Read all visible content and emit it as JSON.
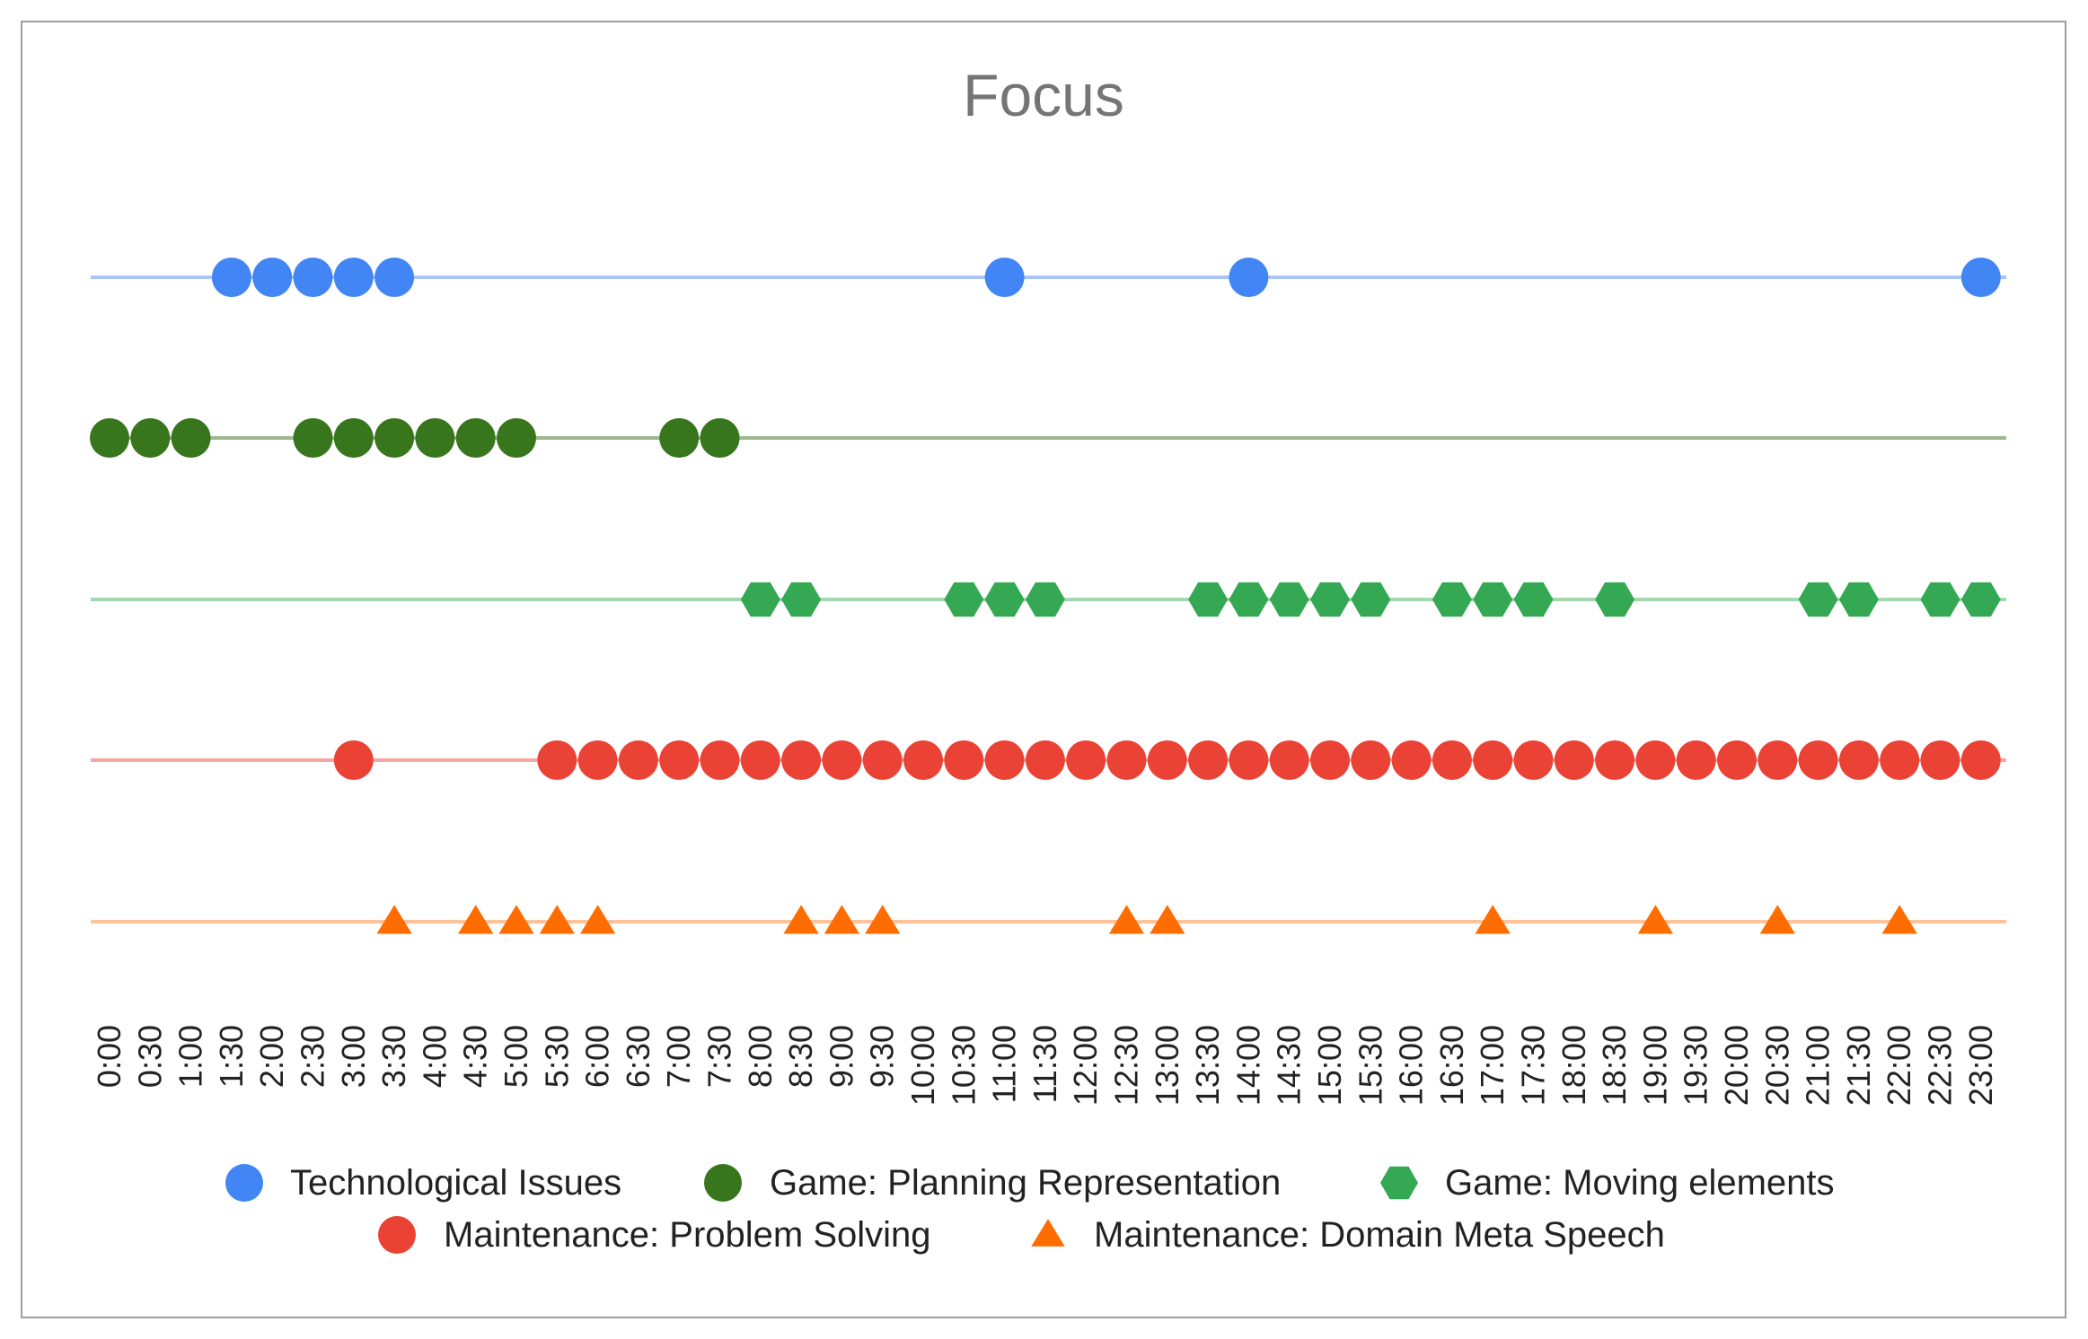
{
  "chart_data": {
    "type": "scatter",
    "title": "Focus",
    "x_categories": [
      "0:00",
      "0:30",
      "1:00",
      "1:30",
      "2:00",
      "2:30",
      "3:00",
      "3:30",
      "4:00",
      "4:30",
      "5:00",
      "5:30",
      "6:00",
      "6:30",
      "7:00",
      "7:30",
      "8:00",
      "8:30",
      "9:00",
      "9:30",
      "10:00",
      "10:30",
      "11:00",
      "11:30",
      "12:00",
      "12:30",
      "13:00",
      "13:30",
      "14:00",
      "14:30",
      "15:00",
      "15:30",
      "16:00",
      "16:30",
      "17:00",
      "17:30",
      "18:00",
      "18:30",
      "19:00",
      "19:30",
      "20:00",
      "20:30",
      "21:00",
      "21:30",
      "22:00",
      "22:30",
      "23:00"
    ],
    "legend_position": "bottom",
    "series": [
      {
        "name": "Technological Issues",
        "color": "#4285f4",
        "line_color": "#a9c5f5",
        "marker": "circle",
        "x": [
          "1:30",
          "2:00",
          "2:30",
          "3:00",
          "3:30",
          "11:00",
          "14:00",
          "23:00"
        ]
      },
      {
        "name": "Game: Planning Representation",
        "color": "#38761d",
        "line_color": "#9cba8e",
        "marker": "circle",
        "x": [
          "0:00",
          "0:30",
          "1:00",
          "2:30",
          "3:00",
          "3:30",
          "4:00",
          "4:30",
          "5:00",
          "7:00",
          "7:30"
        ]
      },
      {
        "name": "Game: Moving elements",
        "color": "#34a853",
        "line_color": "#a3d7b0",
        "marker": "hexagon",
        "x": [
          "8:00",
          "8:30",
          "10:30",
          "11:00",
          "11:30",
          "13:30",
          "14:00",
          "14:30",
          "15:00",
          "15:30",
          "16:30",
          "17:00",
          "17:30",
          "18:30",
          "21:00",
          "21:30",
          "22:30",
          "23:00"
        ]
      },
      {
        "name": "Maintenance: Problem Solving",
        "color": "#ea4335",
        "line_color": "#f4a8a1",
        "marker": "circle",
        "x": [
          "3:00",
          "5:30",
          "6:00",
          "6:30",
          "7:00",
          "7:30",
          "8:00",
          "8:30",
          "9:00",
          "9:30",
          "10:00",
          "10:30",
          "11:00",
          "11:30",
          "12:00",
          "12:30",
          "13:00",
          "13:30",
          "14:00",
          "14:30",
          "15:00",
          "15:30",
          "16:00",
          "16:30",
          "17:00",
          "17:30",
          "18:00",
          "18:30",
          "19:00",
          "19:30",
          "20:00",
          "20:30",
          "21:00",
          "21:30",
          "22:00",
          "22:30",
          "23:00"
        ]
      },
      {
        "name": "Maintenance: Domain Meta Speech",
        "color": "#ff6d01",
        "line_color": "#ffc299",
        "marker": "triangle",
        "x": [
          "3:30",
          "4:30",
          "5:00",
          "5:30",
          "6:00",
          "8:30",
          "9:00",
          "9:30",
          "12:30",
          "13:00",
          "17:00",
          "19:00",
          "20:30",
          "22:00"
        ]
      }
    ]
  }
}
